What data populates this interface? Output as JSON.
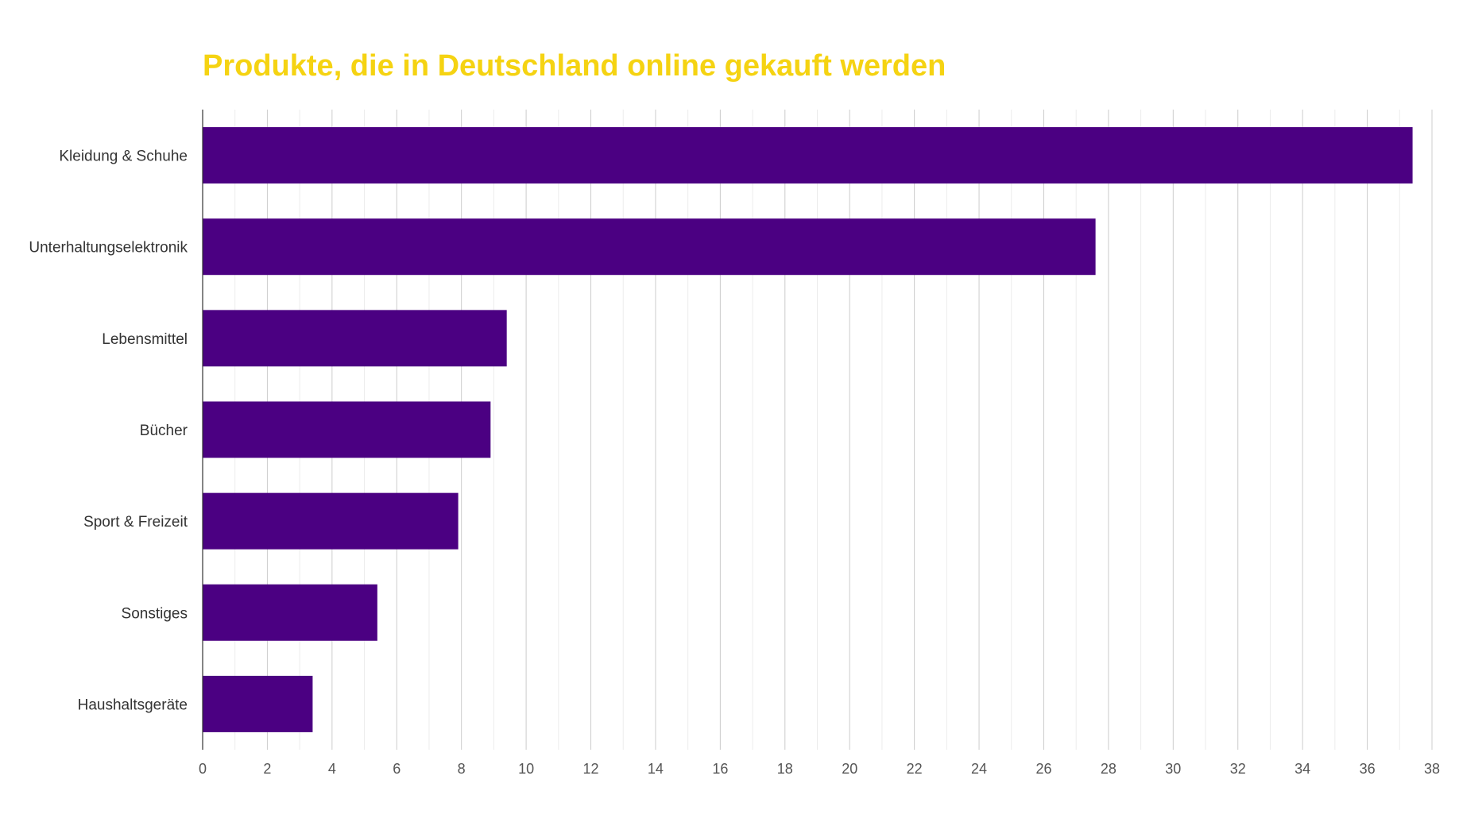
{
  "chart_data": {
    "type": "bar",
    "orientation": "horizontal",
    "title": "Produkte, die in Deutschland online gekauft werden",
    "xlabel": "",
    "ylabel": "",
    "categories": [
      "Kleidung & Schuhe",
      "Unterhaltungselektronik",
      "Lebensmittel",
      "Bücher",
      "Sport & Freizeit",
      "Sonstiges",
      "Haushaltsgeräte"
    ],
    "values": [
      37.4,
      27.6,
      9.4,
      8.9,
      7.9,
      5.4,
      3.4
    ],
    "xlim": [
      0,
      38
    ],
    "xticks": [
      0,
      2,
      4,
      6,
      8,
      10,
      12,
      14,
      16,
      18,
      20,
      22,
      24,
      26,
      28,
      30,
      32,
      34,
      36,
      38
    ],
    "grid": true,
    "minor_grid_step": 1,
    "legend": "none",
    "colors": {
      "bar": "#4B0082",
      "title": "#F5D312",
      "grid": "#d9d9d9",
      "axis": "#333333"
    }
  }
}
